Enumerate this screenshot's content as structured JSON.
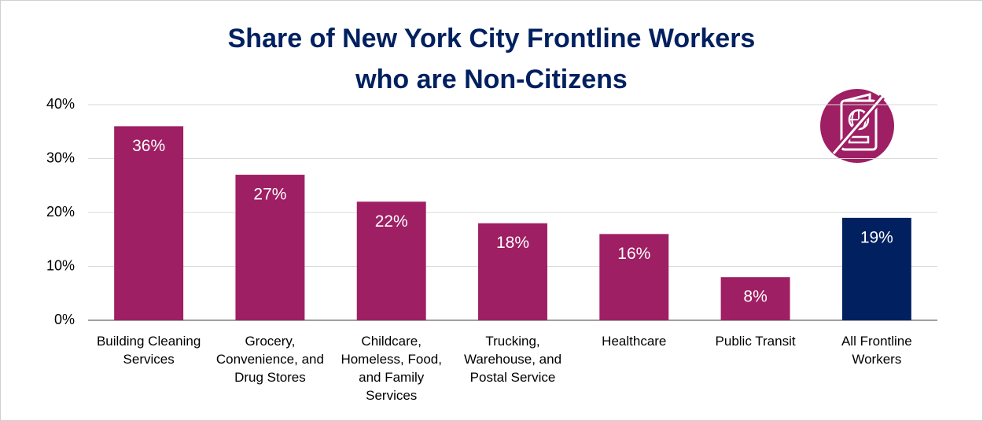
{
  "chart_data": {
    "type": "bar",
    "title": [
      "Share of New York City Frontline Workers",
      "who are Non-Citizens"
    ],
    "categories": [
      "Building Cleaning Services",
      "Grocery, Convenience, and Drug Stores",
      "Childcare, Homeless, Food, and Family Services",
      "Trucking, Warehouse, and Postal Service",
      "Healthcare",
      "Public Transit",
      "All Frontline Workers"
    ],
    "values": [
      36,
      27,
      22,
      18,
      16,
      8,
      19
    ],
    "value_labels": [
      "36%",
      "27%",
      "22%",
      "18%",
      "16%",
      "8%",
      "19%"
    ],
    "colors": [
      "#9e1f63",
      "#9e1f63",
      "#9e1f63",
      "#9e1f63",
      "#9e1f63",
      "#9e1f63",
      "#002060"
    ],
    "ylim": [
      0,
      40
    ],
    "yticks": [
      {
        "value": 0,
        "label": "0%"
      },
      {
        "value": 10,
        "label": "10%"
      },
      {
        "value": 20,
        "label": "20%"
      },
      {
        "value": 30,
        "label": "30%"
      },
      {
        "value": 40,
        "label": "40%"
      }
    ],
    "grid": true
  }
}
